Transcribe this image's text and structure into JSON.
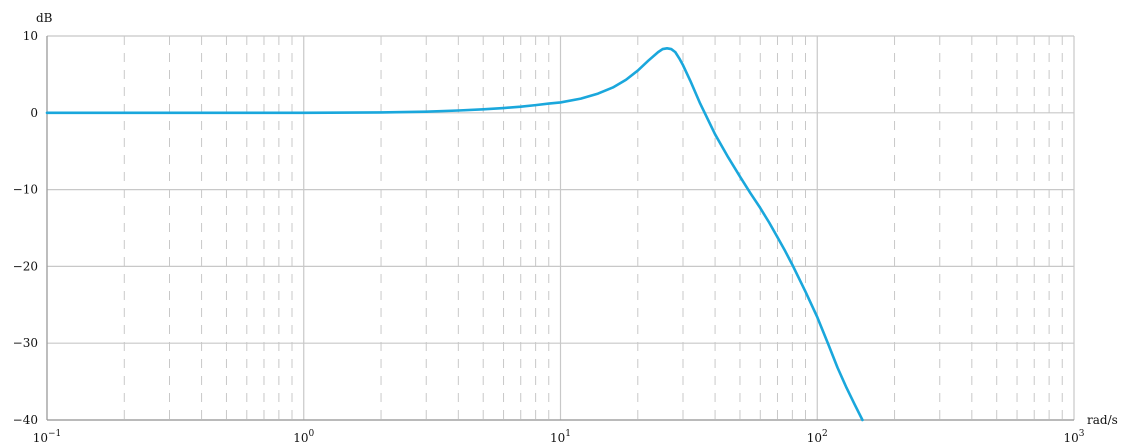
{
  "chart_data": {
    "type": "line",
    "title": "",
    "ylabel": "dB",
    "xlabel": "rad/s",
    "x_scale": "log",
    "xlim": [
      0.1,
      1000
    ],
    "ylim": [
      -40,
      10
    ],
    "x_ticks": [
      {
        "base": "10",
        "exp": "−1",
        "value": 0.1
      },
      {
        "base": "10",
        "exp": "0",
        "value": 1
      },
      {
        "base": "10",
        "exp": "1",
        "value": 10
      },
      {
        "base": "10",
        "exp": "2",
        "value": 100
      },
      {
        "base": "10",
        "exp": "3",
        "value": 1000
      }
    ],
    "y_ticks": [
      {
        "label": "10",
        "value": 10
      },
      {
        "label": "0",
        "value": 0
      },
      {
        "label": "−10",
        "value": -10
      },
      {
        "label": "−20",
        "value": -20
      },
      {
        "label": "−30",
        "value": -30
      },
      {
        "label": "−40",
        "value": -40
      }
    ],
    "grid": true,
    "minor_grid": "dashed",
    "colors": {
      "line": "#1aa7dc",
      "major_grid": "#c8c8c8",
      "minor_grid": "#c8c8c8",
      "axis": "#999999"
    },
    "series": [
      {
        "x": [
          0.1,
          0.2,
          0.5,
          1,
          2,
          3,
          4,
          5,
          6,
          7,
          8,
          9,
          10,
          12,
          14,
          16,
          18,
          20,
          22,
          24,
          25,
          26,
          27,
          28,
          29,
          30,
          32,
          35,
          40,
          45,
          50,
          55,
          60,
          65,
          70,
          75,
          80,
          90,
          100,
          110,
          120,
          130,
          140,
          150
        ],
        "y": [
          0,
          0,
          0,
          0,
          0.05,
          0.15,
          0.3,
          0.45,
          0.62,
          0.8,
          1.0,
          1.2,
          1.35,
          1.85,
          2.5,
          3.3,
          4.3,
          5.5,
          6.8,
          7.9,
          8.3,
          8.4,
          8.3,
          7.9,
          7.1,
          6.2,
          4.2,
          1.2,
          -2.8,
          -5.8,
          -8.3,
          -10.5,
          -12.4,
          -14.3,
          -16.2,
          -18.0,
          -19.8,
          -23.3,
          -26.6,
          -30.0,
          -33.2,
          -35.8,
          -38.0,
          -40.0
        ]
      }
    ]
  }
}
